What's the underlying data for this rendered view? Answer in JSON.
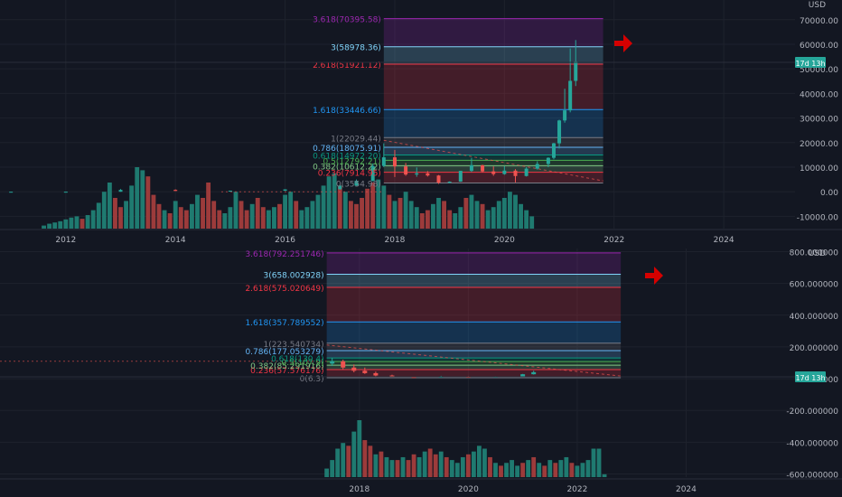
{
  "chart_data": [
    {
      "type": "candlestick",
      "panel": "top",
      "currency": "USD",
      "countdown_label": "17d 13h",
      "last_price": 53000,
      "y_ticks": [
        70000,
        60000,
        50000,
        40000,
        30000,
        20000,
        10000,
        0,
        -10000
      ],
      "y_tick_labels": [
        "70000.00",
        "60000.00",
        "50000.00",
        "40000.00",
        "30000.00",
        "20000.00",
        "10000.00",
        "0.00",
        "-10000.00"
      ],
      "ylim": [
        -15000,
        78000
      ],
      "x_ticks": [
        2012,
        2014,
        2016,
        2018,
        2020,
        2022,
        2024
      ],
      "x_tick_labels": [
        "2012",
        "2014",
        "2016",
        "2018",
        "2020",
        "2022",
        "2024"
      ],
      "xlim": [
        2010.8,
        2025.3
      ],
      "fib_levels": [
        {
          "ratio": 0,
          "value": 3554.98,
          "label": "0(3554.98)",
          "color": "#787b86"
        },
        {
          "ratio": 0.236,
          "value": 7914.95,
          "label": "0.236(7914.95)",
          "color": "#f23645"
        },
        {
          "ratio": 0.382,
          "value": 10612.22,
          "label": "0.382(10612.22)",
          "color": "#81c784"
        },
        {
          "ratio": 0.5,
          "value": 12792.21,
          "label": "0.5(12792.21)",
          "color": "#4caf50"
        },
        {
          "ratio": 0.618,
          "value": 14972.2,
          "label": "0.618(14972.20)",
          "color": "#089981"
        },
        {
          "ratio": 0.786,
          "value": 18075.91,
          "label": "0.786(18075.91)",
          "color": "#64b5f6"
        },
        {
          "ratio": 1,
          "value": 22029.44,
          "label": "1(22029.44)",
          "color": "#787b86"
        },
        {
          "ratio": 1.618,
          "value": 33446.66,
          "label": "1.618(33446.66)",
          "color": "#2196f3"
        },
        {
          "ratio": 2.618,
          "value": 51921.12,
          "label": "2.618(51921.12)",
          "color": "#f23645"
        },
        {
          "ratio": 3,
          "value": 58978.36,
          "label": "3(58978.36)",
          "color": "#81d4fa"
        },
        {
          "ratio": 3.618,
          "value": 70395.58,
          "label": "3.618(70395.58)",
          "color": "#9c27b0"
        }
      ],
      "fib_x_range": [
        2017.8,
        2021.8
      ],
      "candles": [
        {
          "t": 2011.0,
          "o": 0.3,
          "h": 0.3,
          "l": 0.3,
          "c": 0.3
        },
        {
          "t": 2012.0,
          "o": 5,
          "h": 15,
          "l": 4,
          "c": 13
        },
        {
          "t": 2013.0,
          "o": 13,
          "h": 1100,
          "l": 12,
          "c": 750
        },
        {
          "t": 2014.0,
          "o": 750,
          "h": 950,
          "l": 300,
          "c": 320
        },
        {
          "t": 2015.0,
          "o": 320,
          "h": 460,
          "l": 170,
          "c": 430
        },
        {
          "t": 2016.0,
          "o": 430,
          "h": 980,
          "l": 360,
          "c": 960
        },
        {
          "t": 2017.0,
          "o": 1000,
          "h": 2900,
          "l": 900,
          "c": 2500
        },
        {
          "t": 2017.3,
          "o": 2500,
          "h": 5000,
          "l": 2400,
          "c": 4400
        },
        {
          "t": 2017.6,
          "o": 4400,
          "h": 11500,
          "l": 4300,
          "c": 10500
        },
        {
          "t": 2017.8,
          "o": 10500,
          "h": 19700,
          "l": 10000,
          "c": 14000
        },
        {
          "t": 2018.0,
          "o": 14000,
          "h": 17000,
          "l": 6000,
          "c": 10300
        },
        {
          "t": 2018.2,
          "o": 10300,
          "h": 11700,
          "l": 6500,
          "c": 7000
        },
        {
          "t": 2018.4,
          "o": 7000,
          "h": 9900,
          "l": 6100,
          "c": 7500
        },
        {
          "t": 2018.6,
          "o": 7500,
          "h": 8400,
          "l": 6200,
          "c": 6600
        },
        {
          "t": 2018.8,
          "o": 6600,
          "h": 6800,
          "l": 3200,
          "c": 3700
        },
        {
          "t": 2019.0,
          "o": 3700,
          "h": 4200,
          "l": 3400,
          "c": 4100
        },
        {
          "t": 2019.2,
          "o": 4100,
          "h": 8500,
          "l": 4000,
          "c": 8500
        },
        {
          "t": 2019.4,
          "o": 8500,
          "h": 13800,
          "l": 8000,
          "c": 10800
        },
        {
          "t": 2019.6,
          "o": 10800,
          "h": 11000,
          "l": 7800,
          "c": 8300
        },
        {
          "t": 2019.8,
          "o": 8300,
          "h": 10300,
          "l": 6500,
          "c": 7200
        },
        {
          "t": 2020.0,
          "o": 7200,
          "h": 10500,
          "l": 6900,
          "c": 8600
        },
        {
          "t": 2020.2,
          "o": 8600,
          "h": 9200,
          "l": 3800,
          "c": 6400
        },
        {
          "t": 2020.4,
          "o": 6400,
          "h": 10000,
          "l": 6200,
          "c": 9400
        },
        {
          "t": 2020.6,
          "o": 9400,
          "h": 12400,
          "l": 9000,
          "c": 11300
        },
        {
          "t": 2020.8,
          "o": 11300,
          "h": 14000,
          "l": 10000,
          "c": 13800
        },
        {
          "t": 2020.9,
          "o": 13800,
          "h": 19900,
          "l": 13200,
          "c": 19700
        },
        {
          "t": 2021.0,
          "o": 19700,
          "h": 29300,
          "l": 17600,
          "c": 29000
        },
        {
          "t": 2021.1,
          "o": 29000,
          "h": 41900,
          "l": 28100,
          "c": 33100
        },
        {
          "t": 2021.2,
          "o": 33100,
          "h": 58300,
          "l": 32300,
          "c": 45100
        },
        {
          "t": 2021.3,
          "o": 45100,
          "h": 61700,
          "l": 43000,
          "c": 53000
        }
      ],
      "volume_bars": {
        "start": 2011.6,
        "step": 0.1,
        "rel": [
          0.05,
          0.08,
          0.1,
          0.12,
          0.15,
          0.18,
          0.2,
          0.16,
          0.22,
          0.3,
          0.42,
          0.6,
          0.75,
          0.5,
          0.35,
          0.45,
          0.7,
          1.0,
          0.95,
          0.85,
          0.55,
          0.4,
          0.3,
          0.25,
          0.45,
          0.35,
          0.3,
          0.4,
          0.55,
          0.5,
          0.75,
          0.45,
          0.3,
          0.25,
          0.35,
          0.6,
          0.45,
          0.3,
          0.4,
          0.5,
          0.35,
          0.3,
          0.35,
          0.4,
          0.55,
          0.6,
          0.45,
          0.3,
          0.35,
          0.45,
          0.55,
          0.7,
          0.85,
          0.9,
          0.7,
          0.6,
          0.45,
          0.4,
          0.5,
          0.65,
          0.75,
          0.8,
          0.7,
          0.55,
          0.45,
          0.5,
          0.6,
          0.45,
          0.35,
          0.25,
          0.3,
          0.4,
          0.5,
          0.45,
          0.3,
          0.25,
          0.35,
          0.5,
          0.55,
          0.45,
          0.4,
          0.3,
          0.35,
          0.45,
          0.5,
          0.6,
          0.55,
          0.4,
          0.3,
          0.2
        ],
        "up": [
          1,
          1,
          1,
          1,
          1,
          1,
          1,
          0,
          1,
          1,
          1,
          1,
          1,
          0,
          0,
          1,
          1,
          1,
          1,
          0,
          0,
          0,
          1,
          0,
          1,
          0,
          0,
          1,
          1,
          0,
          0,
          0,
          0,
          1,
          1,
          1,
          0,
          0,
          1,
          0,
          0,
          1,
          1,
          0,
          1,
          1,
          0,
          1,
          1,
          1,
          1,
          1,
          1,
          1,
          0,
          1,
          0,
          0,
          0,
          0,
          0,
          1,
          1,
          0,
          1,
          0,
          1,
          1,
          1,
          0,
          0,
          1,
          1,
          0,
          0,
          1,
          1,
          0,
          1,
          1,
          0,
          1,
          1,
          1,
          1,
          1,
          1,
          1,
          1,
          1
        ]
      }
    },
    {
      "type": "candlestick",
      "panel": "bottom",
      "currency": "USD",
      "countdown_label": "17d 13h",
      "last_price": 41,
      "y_ticks": [
        800,
        600,
        400,
        200,
        0,
        -200,
        -400,
        -600
      ],
      "y_tick_labels": [
        "800.000000",
        "600.000000",
        "400.000000",
        "200.000000",
        "0.000000",
        "-200.000000",
        "-400.000000",
        "-600.000000"
      ],
      "ylim": [
        -620,
        820
      ],
      "x_ticks": [
        2018,
        2020,
        2022,
        2024
      ],
      "x_tick_labels": [
        "2018",
        "2020",
        "2022",
        "2024"
      ],
      "xlim": [
        2011.4,
        2026.0
      ],
      "fib_levels": [
        {
          "ratio": 0,
          "value": 6.3,
          "label": "0(6.3)",
          "color": "#787b86"
        },
        {
          "ratio": 0.236,
          "value": 57.576176,
          "label": "0.236(57.576176)",
          "color": "#f23645"
        },
        {
          "ratio": 0.382,
          "value": 85.291916,
          "label": "0.382(85.291916)",
          "color": "#81c784"
        },
        {
          "ratio": 0.5,
          "value": 107.9,
          "label": "0.5(107.9)",
          "color": "#4caf50"
        },
        {
          "ratio": 0.618,
          "value": 130.4,
          "label": "0.618(130.4)",
          "color": "#089981"
        },
        {
          "ratio": 0.786,
          "value": 177.053279,
          "label": "0.786(177.053279)",
          "color": "#64b5f6"
        },
        {
          "ratio": 1,
          "value": 223.540734,
          "label": "1(223.540734)",
          "color": "#787b86"
        },
        {
          "ratio": 1.618,
          "value": 357.789552,
          "label": "1.618(357.789552)",
          "color": "#2196f3"
        },
        {
          "ratio": 2.618,
          "value": 575.020649,
          "label": "2.618(575.020649)",
          "color": "#f23645"
        },
        {
          "ratio": 3,
          "value": 658.002928,
          "label": "3(658.002928)",
          "color": "#81d4fa"
        },
        {
          "ratio": 3.618,
          "value": 792.251746,
          "label": "3.618(792.251746)",
          "color": "#9c27b0"
        }
      ],
      "fib_x_range": [
        2017.4,
        2022.8
      ],
      "candles": [
        {
          "t": 2017.5,
          "o": 95,
          "h": 130,
          "l": 80,
          "c": 110
        },
        {
          "t": 2017.7,
          "o": 110,
          "h": 120,
          "l": 60,
          "c": 70
        },
        {
          "t": 2017.9,
          "o": 70,
          "h": 90,
          "l": 40,
          "c": 50
        },
        {
          "t": 2018.1,
          "o": 50,
          "h": 70,
          "l": 30,
          "c": 35
        },
        {
          "t": 2018.3,
          "o": 35,
          "h": 45,
          "l": 15,
          "c": 20
        },
        {
          "t": 2018.6,
          "o": 20,
          "h": 25,
          "l": 8,
          "c": 10
        },
        {
          "t": 2019.0,
          "o": 10,
          "h": 14,
          "l": 6.3,
          "c": 9
        },
        {
          "t": 2019.5,
          "o": 9,
          "h": 18,
          "l": 8,
          "c": 12
        },
        {
          "t": 2020.0,
          "o": 12,
          "h": 16,
          "l": 9,
          "c": 11
        },
        {
          "t": 2020.5,
          "o": 11,
          "h": 15,
          "l": 9,
          "c": 13
        },
        {
          "t": 2021.0,
          "o": 13,
          "h": 30,
          "l": 12,
          "c": 28
        },
        {
          "t": 2021.2,
          "o": 28,
          "h": 50,
          "l": 26,
          "c": 41
        }
      ],
      "volume_bars": {
        "start": 2017.4,
        "step": 0.1,
        "rel": [
          0.15,
          0.3,
          0.5,
          0.6,
          0.55,
          0.8,
          1.0,
          0.65,
          0.55,
          0.4,
          0.45,
          0.35,
          0.3,
          0.3,
          0.35,
          0.3,
          0.4,
          0.35,
          0.45,
          0.5,
          0.4,
          0.45,
          0.35,
          0.3,
          0.25,
          0.35,
          0.4,
          0.45,
          0.55,
          0.5,
          0.35,
          0.25,
          0.2,
          0.25,
          0.3,
          0.2,
          0.25,
          0.3,
          0.35,
          0.25,
          0.2,
          0.3,
          0.25,
          0.3,
          0.35,
          0.25,
          0.2,
          0.25,
          0.3,
          0.5,
          0.5,
          0.05
        ],
        "up": [
          1,
          1,
          1,
          1,
          0,
          1,
          1,
          0,
          0,
          1,
          0,
          1,
          1,
          0,
          1,
          0,
          0,
          1,
          1,
          0,
          0,
          1,
          0,
          1,
          1,
          1,
          0,
          1,
          1,
          1,
          0,
          1,
          0,
          1,
          1,
          1,
          0,
          1,
          0,
          1,
          0,
          1,
          0,
          1,
          1,
          0,
          1,
          1,
          1,
          1,
          1,
          1
        ]
      }
    }
  ],
  "colors": {
    "background": "#131722",
    "grid": "#1e222d",
    "axis_text": "#b2b5be",
    "up": "#26a69a",
    "down": "#ef5350",
    "up_volume": "#1f7a70",
    "down_volume": "#9c3b3b",
    "price_tag": "#26a69a",
    "arrow": "#d50000"
  },
  "annotations": {
    "arrow_icon": "red-arrow-right"
  }
}
